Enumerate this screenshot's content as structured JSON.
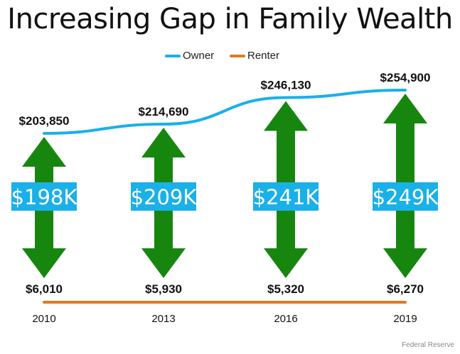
{
  "title": "Increasing Gap in Family Wealth",
  "source": "Federal Reserve",
  "chart_data": {
    "type": "line",
    "categories": [
      "2010",
      "2013",
      "2016",
      "2019"
    ],
    "series": [
      {
        "name": "Owner",
        "color": "#1ab0e8",
        "values": [
          203850,
          214690,
          246130,
          254900
        ],
        "labels": [
          "$203,850",
          "$214,690",
          "$246,130",
          "$254,900"
        ]
      },
      {
        "name": "Renter",
        "color": "#e07b1f",
        "values": [
          6010,
          5930,
          5320,
          6270
        ],
        "labels": [
          "$6,010",
          "$5,930",
          "$5,320",
          "$6,270"
        ]
      }
    ],
    "gaps": [
      "$198K",
      "$209K",
      "$241K",
      "$249K"
    ],
    "gap_arrow_color": "#17860f",
    "gap_label_color": "#1ab0e8",
    "legend_position": "top-center",
    "grid": false
  }
}
